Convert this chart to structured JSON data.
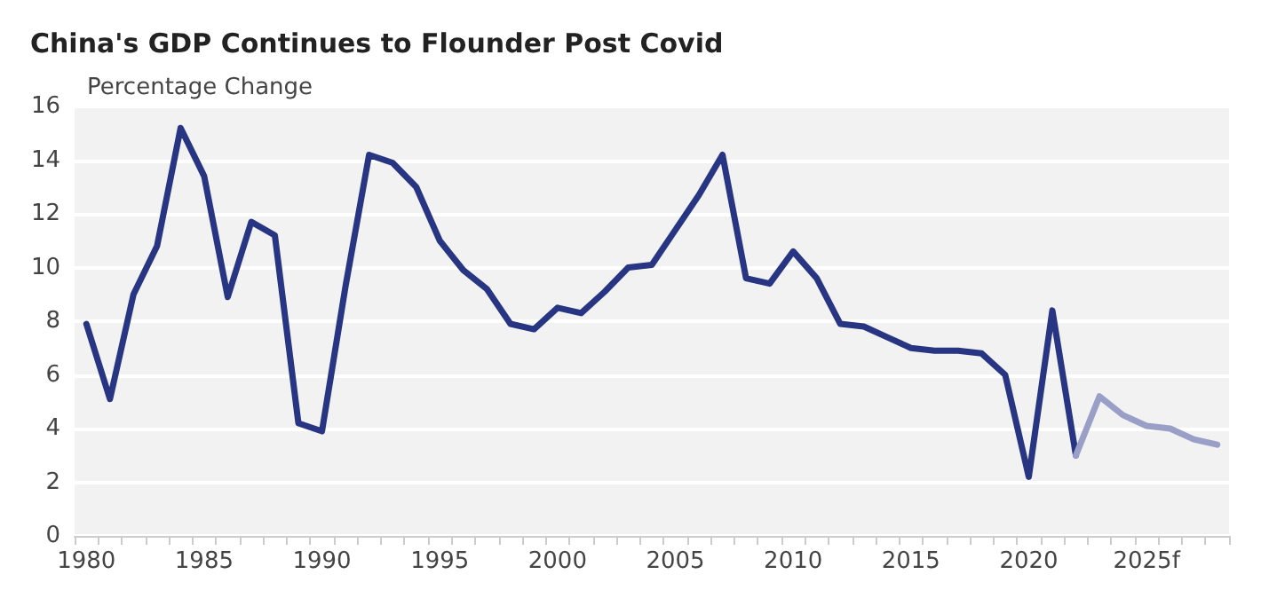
{
  "chart_data": {
    "type": "line",
    "title": "China's GDP Continues to Flounder Post Covid",
    "ylabel": "Percentage Change",
    "categories": [
      "1980",
      null,
      null,
      null,
      null,
      "1985",
      null,
      null,
      null,
      null,
      "1990",
      null,
      null,
      null,
      null,
      "1995",
      null,
      null,
      null,
      null,
      "2000",
      null,
      null,
      null,
      null,
      "2005",
      null,
      null,
      null,
      null,
      "2010",
      null,
      null,
      null,
      null,
      "2015",
      null,
      null,
      null,
      null,
      "2020",
      null,
      null,
      null,
      null,
      "2025f",
      null,
      null,
      null
    ],
    "series": [
      {
        "color": "#283583",
        "values": [
          7.9,
          5.1,
          9.0,
          10.8,
          15.2,
          13.4,
          8.9,
          11.7,
          11.2,
          4.2,
          3.9,
          9.3,
          14.2,
          13.9,
          13.0,
          11.0,
          9.9,
          9.2,
          7.9,
          7.7,
          8.5,
          8.3,
          9.1,
          10.0,
          10.1,
          11.4,
          12.7,
          14.2,
          9.6,
          9.4,
          10.6,
          9.6,
          7.9,
          7.8,
          7.4,
          7.0,
          6.9,
          6.9,
          6.8,
          6.0,
          2.2,
          8.4,
          3.0,
          null,
          null,
          null,
          null,
          null,
          null
        ]
      },
      {
        "color": "#9a9fc8",
        "values": [
          null,
          null,
          null,
          null,
          null,
          null,
          null,
          null,
          null,
          null,
          null,
          null,
          null,
          null,
          null,
          null,
          null,
          null,
          null,
          null,
          null,
          null,
          null,
          null,
          null,
          null,
          null,
          null,
          null,
          null,
          null,
          null,
          null,
          null,
          null,
          null,
          null,
          null,
          null,
          null,
          null,
          null,
          3.0,
          5.2,
          4.5,
          4.1,
          4.0,
          3.6,
          3.4
        ]
      }
    ],
    "ylim": [
      0,
      16
    ],
    "yticks": [
      0,
      2,
      4,
      6,
      8,
      10,
      12,
      14,
      16
    ],
    "grid": "y",
    "marker": "none",
    "line_style": "solid"
  }
}
